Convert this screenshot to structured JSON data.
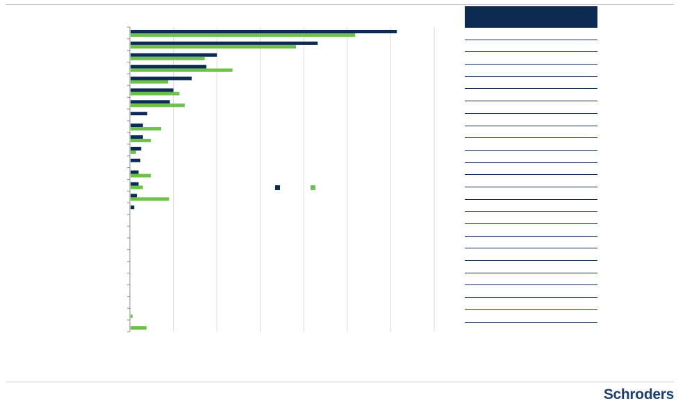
{
  "brand": {
    "logo_text": "Schroders",
    "colors": {
      "navy": "#0c2a52",
      "green": "#6cc24a",
      "logo": "#1f3e6b"
    }
  },
  "chart_data": {
    "type": "bar",
    "orientation": "horizontal",
    "grid": true,
    "legend": "center-right",
    "xlim": [
      0,
      3.5
    ],
    "categories": [
      "",
      "",
      "",
      "",
      "",
      "",
      "",
      "",
      "",
      "",
      "",
      "",
      "",
      "",
      "",
      "",
      "",
      "",
      "",
      "",
      "",
      "",
      "",
      "",
      "",
      ""
    ],
    "series": [
      {
        "color": "#0c2a52",
        "values": [
          3.07,
          2.16,
          1.0,
          0.88,
          0.71,
          0.5,
          0.46,
          0.2,
          0.15,
          0.15,
          0.13,
          0.12,
          0.1,
          0.1,
          0.08,
          0.05,
          0,
          0,
          0,
          0,
          0,
          0,
          0,
          0,
          0,
          0
        ]
      },
      {
        "color": "#6cc24a",
        "values": [
          2.59,
          1.91,
          0.86,
          1.18,
          0.44,
          0.57,
          0.63,
          0,
          0.36,
          0.24,
          0.07,
          0,
          0.24,
          0.15,
          0.45,
          0,
          0,
          0,
          0,
          0,
          0,
          0,
          0,
          0,
          0.03,
          0.19
        ]
      }
    ]
  },
  "side_table": {
    "rows": [
      "",
      "",
      "",
      "",
      "",
      "",
      "",
      "",
      "",
      "",
      "",
      "",
      "",
      "",
      "",
      "",
      "",
      "",
      "",
      "",
      "",
      "",
      "",
      ""
    ]
  }
}
